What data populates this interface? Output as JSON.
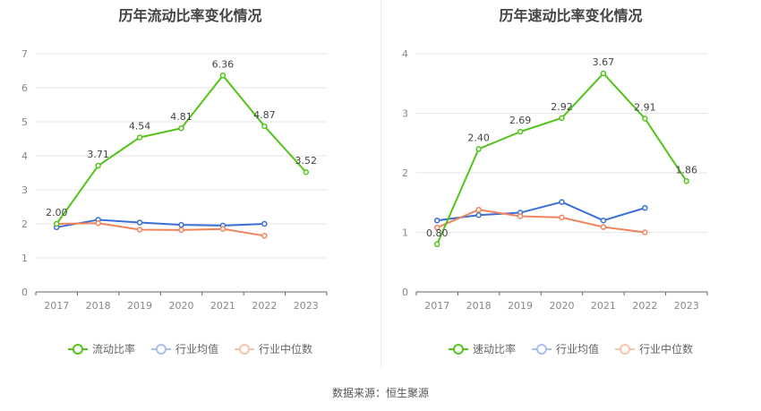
{
  "source_text": "数据来源：恒生聚源",
  "colors": {
    "primary": "#52c41a",
    "industry_avg": "#3a6fd8",
    "industry_median": "#f0845c"
  },
  "chart_data": [
    {
      "type": "line",
      "title": "历年流动比率变化情况",
      "x": [
        "2017",
        "2018",
        "2019",
        "2020",
        "2021",
        "2022",
        "2023"
      ],
      "ylim": [
        0,
        7
      ],
      "yticks": [
        "0",
        "1",
        "2",
        "3",
        "4",
        "5",
        "6",
        "7"
      ],
      "grid": true,
      "legend_position": "bottom",
      "series": [
        {
          "name": "流动比率",
          "values": [
            2.0,
            3.71,
            4.54,
            4.81,
            6.36,
            4.87,
            3.52
          ],
          "labels": [
            "2.00",
            "3.71",
            "4.54",
            "4.81",
            "6.36",
            "4.87",
            "3.52"
          ]
        },
        {
          "name": "行业均值",
          "values": [
            1.9,
            2.12,
            2.04,
            1.97,
            1.95,
            2.0,
            null
          ]
        },
        {
          "name": "行业中位数",
          "values": [
            2.0,
            2.02,
            1.83,
            1.82,
            1.85,
            1.65,
            null
          ]
        }
      ]
    },
    {
      "type": "line",
      "title": "历年速动比率变化情况",
      "x": [
        "2017",
        "2018",
        "2019",
        "2020",
        "2021",
        "2022",
        "2023"
      ],
      "ylim": [
        0,
        4
      ],
      "yticks": [
        "0",
        "1",
        "2",
        "3",
        "4"
      ],
      "grid": true,
      "legend_position": "bottom",
      "series": [
        {
          "name": "速动比率",
          "values": [
            0.8,
            2.4,
            2.69,
            2.92,
            3.67,
            2.91,
            1.86
          ],
          "labels": [
            "0.80",
            "2.40",
            "2.69",
            "2.92",
            "3.67",
            "2.91",
            "1.86"
          ]
        },
        {
          "name": "行业均值",
          "values": [
            1.2,
            1.29,
            1.33,
            1.51,
            1.2,
            1.41,
            null
          ]
        },
        {
          "name": "行业中位数",
          "values": [
            1.08,
            1.38,
            1.27,
            1.25,
            1.09,
            1.0,
            null
          ]
        }
      ]
    }
  ]
}
